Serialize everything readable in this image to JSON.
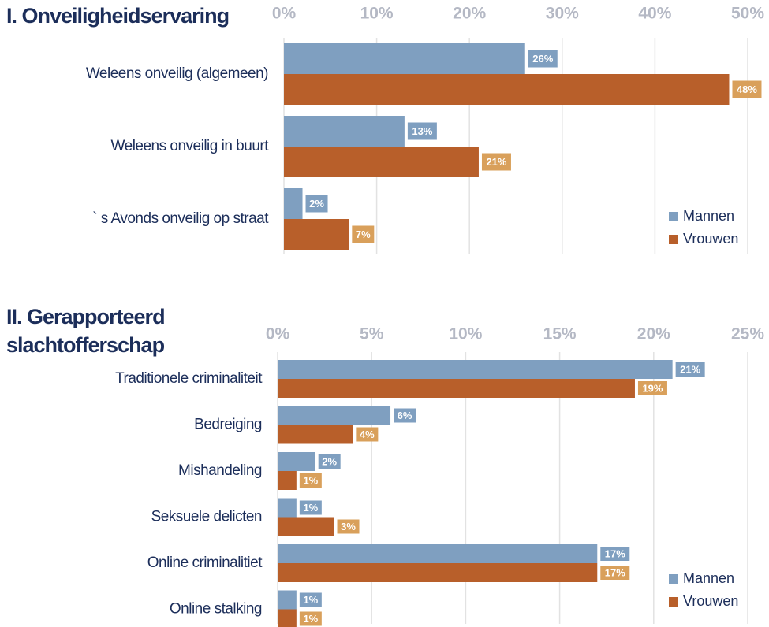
{
  "chart_data": [
    {
      "type": "bar",
      "orientation": "horizontal",
      "title": "I. Onveiligheidservaring",
      "categories": [
        "Weleens onveilig (algemeen)",
        "Weleens onveilig in buurt",
        "` s Avonds onveilig op straat"
      ],
      "series": [
        {
          "name": "Mannen",
          "color": "#7f9fc0",
          "label_color": "#7f9fc0",
          "values": [
            26,
            13,
            2
          ],
          "value_labels": [
            "26%",
            "13%",
            "2%"
          ]
        },
        {
          "name": "Vrouwen",
          "color": "#b85f2a",
          "label_color": "#d9a05b",
          "values": [
            48,
            21,
            7
          ],
          "value_labels": [
            "48%",
            "21%",
            "7%"
          ]
        }
      ],
      "xlim": [
        0,
        50
      ],
      "xticks": [
        {
          "value": 0,
          "label": "0%"
        },
        {
          "value": 10,
          "label": "10%"
        },
        {
          "value": 20,
          "label": "20%"
        },
        {
          "value": 30,
          "label": "30%"
        },
        {
          "value": 40,
          "label": "40%"
        },
        {
          "value": 50,
          "label": "50%"
        }
      ],
      "grid": true,
      "legend": "lower right"
    },
    {
      "type": "bar",
      "orientation": "horizontal",
      "title": "II. Gerapporteerd slachtofferschap",
      "categories": [
        "Traditionele criminaliteit",
        "Bedreiging",
        "Mishandeling",
        "Seksuele delicten",
        "Online criminalitiet",
        "Online stalking"
      ],
      "series": [
        {
          "name": "Mannen",
          "color": "#7f9fc0",
          "label_color": "#7f9fc0",
          "values": [
            21,
            6,
            2,
            1,
            17,
            1
          ],
          "value_labels": [
            "21%",
            "6%",
            "2%",
            "1%",
            "17%",
            "1%"
          ]
        },
        {
          "name": "Vrouwen",
          "color": "#b85f2a",
          "label_color": "#d9a05b",
          "values": [
            19,
            4,
            1,
            3,
            17,
            1
          ],
          "value_labels": [
            "19%",
            "4%",
            "1%",
            "3%",
            "17%",
            "1%"
          ]
        }
      ],
      "xlim": [
        0,
        25
      ],
      "xticks": [
        {
          "value": 0,
          "label": "0%"
        },
        {
          "value": 5,
          "label": "5%"
        },
        {
          "value": 10,
          "label": "10%"
        },
        {
          "value": 15,
          "label": "15%"
        },
        {
          "value": 20,
          "label": "20%"
        },
        {
          "value": 25,
          "label": "25%"
        }
      ],
      "grid": true,
      "legend": "lower right"
    }
  ]
}
